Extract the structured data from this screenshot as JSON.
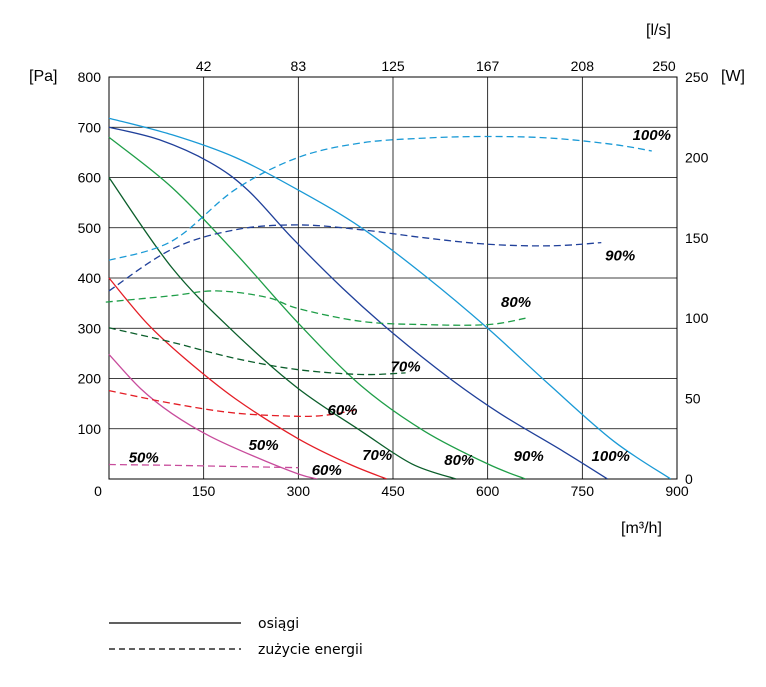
{
  "chart_data": {
    "type": "line",
    "units": {
      "left": "[Pa]",
      "right": "[W]",
      "top": "[l/s]",
      "bottom": "[m³/h]"
    },
    "x_ticks": [
      "0",
      "150",
      "300",
      "450",
      "600",
      "750",
      "900"
    ],
    "x_top_ticks": [
      "42",
      "83",
      "125",
      "167",
      "208",
      "250"
    ],
    "y_left_ticks": [
      "100",
      "200",
      "300",
      "400",
      "500",
      "600",
      "700",
      "800"
    ],
    "y_right_ticks": [
      "0",
      "50",
      "100",
      "150",
      "200",
      "250"
    ],
    "xlim": [
      0,
      900
    ],
    "ylim": [
      0,
      800
    ],
    "y2lim": [
      0,
      250
    ],
    "grid": true,
    "colors": {
      "100%": "#1a9ad6",
      "90%": "#20409a",
      "80%": "#1f9e48",
      "70%": "#0b5e2b",
      "60%": "#e41e26",
      "50%": "#c84c9c"
    },
    "series": [
      {
        "name": "100%",
        "kind": "osiagi",
        "axis": "left",
        "points": [
          [
            0,
            718
          ],
          [
            100,
            685
          ],
          [
            200,
            640
          ],
          [
            300,
            575
          ],
          [
            400,
            500
          ],
          [
            500,
            405
          ],
          [
            600,
            300
          ],
          [
            700,
            185
          ],
          [
            800,
            75
          ],
          [
            890,
            0
          ]
        ]
      },
      {
        "name": "90%",
        "kind": "osiagi",
        "axis": "left",
        "points": [
          [
            0,
            700
          ],
          [
            80,
            675
          ],
          [
            160,
            630
          ],
          [
            220,
            575
          ],
          [
            290,
            480
          ],
          [
            370,
            380
          ],
          [
            450,
            290
          ],
          [
            540,
            200
          ],
          [
            620,
            130
          ],
          [
            720,
            55
          ],
          [
            790,
            0
          ]
        ]
      },
      {
        "name": "80%",
        "kind": "osiagi",
        "axis": "left",
        "points": [
          [
            0,
            680
          ],
          [
            100,
            580
          ],
          [
            200,
            450
          ],
          [
            300,
            310
          ],
          [
            400,
            185
          ],
          [
            500,
            95
          ],
          [
            600,
            30
          ],
          [
            660,
            0
          ]
        ]
      },
      {
        "name": "70%",
        "kind": "osiagi",
        "axis": "left",
        "points": [
          [
            0,
            600
          ],
          [
            100,
            420
          ],
          [
            200,
            290
          ],
          [
            300,
            180
          ],
          [
            400,
            95
          ],
          [
            480,
            30
          ],
          [
            550,
            0
          ]
        ]
      },
      {
        "name": "60%",
        "kind": "osiagi",
        "axis": "left",
        "points": [
          [
            0,
            400
          ],
          [
            60,
            310
          ],
          [
            120,
            240
          ],
          [
            200,
            160
          ],
          [
            300,
            80
          ],
          [
            380,
            30
          ],
          [
            440,
            0
          ]
        ]
      },
      {
        "name": "50%",
        "kind": "osiagi",
        "axis": "left",
        "points": [
          [
            0,
            248
          ],
          [
            50,
            180
          ],
          [
            100,
            130
          ],
          [
            160,
            85
          ],
          [
            230,
            45
          ],
          [
            300,
            10
          ],
          [
            330,
            0
          ]
        ]
      },
      {
        "name": "100%",
        "kind": "zuzycie",
        "axis": "right",
        "points": [
          [
            0,
            136
          ],
          [
            100,
            148
          ],
          [
            200,
            180
          ],
          [
            300,
            200
          ],
          [
            400,
            209
          ],
          [
            500,
            212
          ],
          [
            600,
            213
          ],
          [
            700,
            212
          ],
          [
            800,
            208
          ],
          [
            860,
            204
          ]
        ]
      },
      {
        "name": "90%",
        "kind": "zuzycie",
        "axis": "right",
        "points": [
          [
            0,
            117
          ],
          [
            100,
            143
          ],
          [
            200,
            155
          ],
          [
            300,
            158
          ],
          [
            400,
            155
          ],
          [
            500,
            150
          ],
          [
            600,
            146
          ],
          [
            700,
            145
          ],
          [
            780,
            147
          ]
        ]
      },
      {
        "name": "80%",
        "kind": "zuzycie",
        "axis": "right",
        "points": [
          [
            -5,
            110
          ],
          [
            100,
            114
          ],
          [
            170,
            117
          ],
          [
            250,
            113
          ],
          [
            300,
            106
          ],
          [
            400,
            98
          ],
          [
            500,
            96
          ],
          [
            600,
            96
          ],
          [
            660,
            100
          ]
        ]
      },
      {
        "name": "70%",
        "kind": "zuzycie",
        "axis": "right",
        "points": [
          [
            0,
            94
          ],
          [
            100,
            85
          ],
          [
            200,
            75
          ],
          [
            300,
            68
          ],
          [
            400,
            65
          ],
          [
            470,
            66
          ]
        ]
      },
      {
        "name": "60%",
        "kind": "zuzycie",
        "axis": "right",
        "points": [
          [
            0,
            55
          ],
          [
            100,
            47
          ],
          [
            200,
            41
          ],
          [
            300,
            39
          ],
          [
            350,
            40
          ],
          [
            390,
            43
          ]
        ]
      },
      {
        "name": "50%",
        "kind": "zuzycie",
        "axis": "right",
        "points": [
          [
            0,
            9
          ],
          [
            100,
            8.5
          ],
          [
            200,
            7.8
          ],
          [
            300,
            7
          ]
        ]
      }
    ],
    "curve_labels": [
      {
        "text": "100%",
        "x": 795,
        "y": 46
      },
      {
        "text": "90%",
        "x": 665,
        "y": 46
      },
      {
        "text": "80%",
        "x": 555,
        "y": 38
      },
      {
        "text": "70%",
        "x": 425,
        "y": 48
      },
      {
        "text": "60%",
        "x": 345,
        "y": 18
      },
      {
        "text": "50%",
        "x": 245,
        "y": 68
      },
      {
        "text": "50%",
        "x": 55,
        "y": 43
      },
      {
        "text": "60%",
        "x": 370,
        "y": 43,
        "axis": "right"
      },
      {
        "text": "70%",
        "x": 470,
        "y": 70,
        "axis": "right"
      },
      {
        "text": "80%",
        "x": 645,
        "y": 110,
        "axis": "right"
      },
      {
        "text": "90%",
        "x": 810,
        "y": 139,
        "axis": "right"
      },
      {
        "text": "100%",
        "x": 860,
        "y": 214,
        "axis": "right"
      }
    ],
    "legend": [
      {
        "label": "osiągi",
        "style": "solid"
      },
      {
        "label": "zużycie energii",
        "style": "dashed"
      }
    ]
  }
}
